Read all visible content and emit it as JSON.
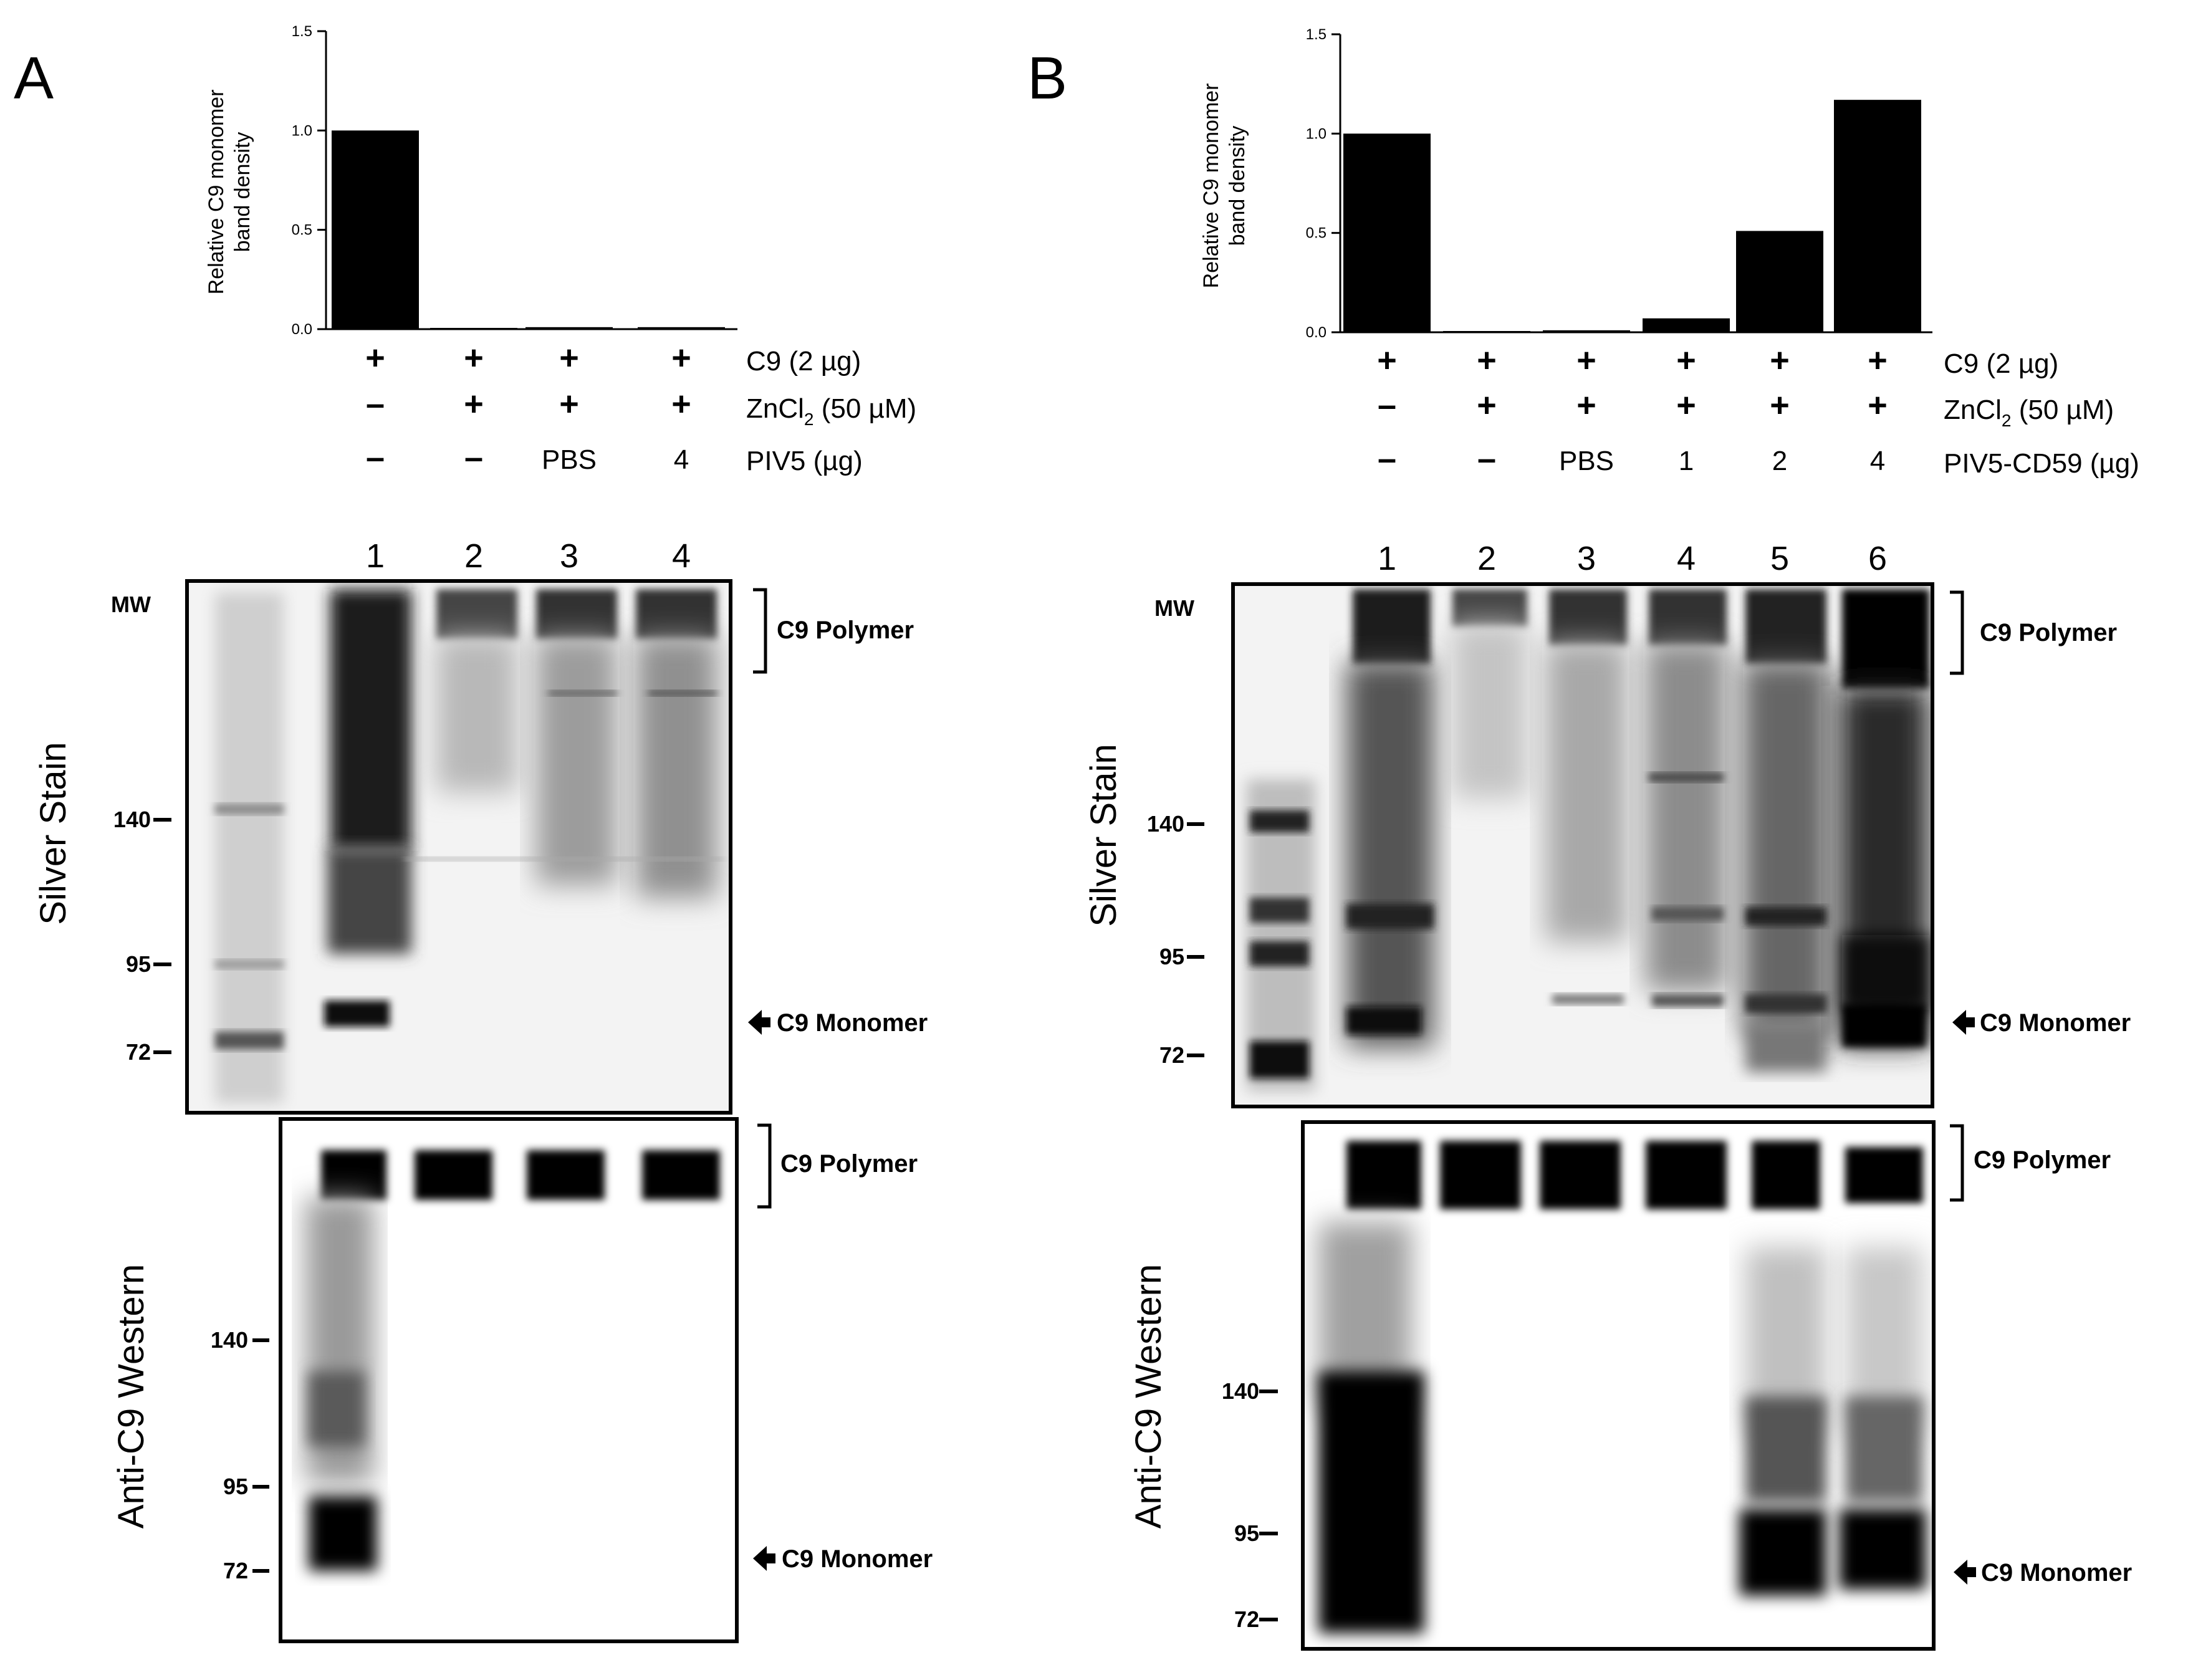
{
  "panels": [
    {
      "letter": "A",
      "chart_data": {
        "type": "bar",
        "ylabel": "Relative C9 monomer band density",
        "ylabel_lines": [
          "Relative C9 monomer",
          "band density"
        ],
        "ylim": [
          0,
          1.5
        ],
        "yticks": [
          "0.0",
          "0.5",
          "1.0",
          "1.5"
        ],
        "categories": [
          "1",
          "2",
          "3",
          "4"
        ],
        "values": [
          1.0,
          0.005,
          0.01,
          0.01
        ]
      },
      "conditions": [
        {
          "label": "C9 (2 µg)",
          "values": [
            "+",
            "+",
            "+",
            "+"
          ]
        },
        {
          "label": "ZnCl2 (50 µM)",
          "label_main": "ZnCl",
          "label_sub": "2",
          "label_rest": " (50 µM)",
          "values": [
            "-",
            "+",
            "+",
            "+"
          ]
        },
        {
          "label": "PIV5 (µg)",
          "values": [
            "-",
            "-",
            "PBS",
            "4"
          ]
        }
      ],
      "lanes": [
        "1",
        "2",
        "3",
        "4"
      ],
      "silver": {
        "side_label": "Silver Stain",
        "mw_header": "MW",
        "mw_markers": [
          "140",
          "95",
          "72"
        ],
        "annotations": {
          "polymer": "C9 Polymer",
          "monomer": "C9 Monomer"
        }
      },
      "western": {
        "side_label": "Anti-C9 Western",
        "mw_markers": [
          "140",
          "95",
          "72"
        ],
        "annotations": {
          "polymer": "C9 Polymer",
          "monomer": "C9 Monomer"
        }
      }
    },
    {
      "letter": "B",
      "chart_data": {
        "type": "bar",
        "ylabel": "Relative C9 monomer band density",
        "ylabel_lines": [
          "Relative C9 monomer",
          "band density"
        ],
        "ylim": [
          0,
          1.5
        ],
        "yticks": [
          "0.0",
          "0.5",
          "1.0",
          "1.5"
        ],
        "categories": [
          "1",
          "2",
          "3",
          "4",
          "5",
          "6"
        ],
        "values": [
          1.0,
          0.0,
          0.01,
          0.07,
          0.51,
          1.17
        ]
      },
      "conditions": [
        {
          "label": "C9 (2 µg)",
          "values": [
            "+",
            "+",
            "+",
            "+",
            "+",
            "+"
          ]
        },
        {
          "label": "ZnCl2 (50 µM)",
          "label_main": "ZnCl",
          "label_sub": "2",
          "label_rest": " (50 µM)",
          "values": [
            "-",
            "+",
            "+",
            "+",
            "+",
            "+"
          ]
        },
        {
          "label": "PIV5-CD59 (µg)",
          "values": [
            "-",
            "-",
            "PBS",
            "1",
            "2",
            "4"
          ]
        }
      ],
      "lanes": [
        "1",
        "2",
        "3",
        "4",
        "5",
        "6"
      ],
      "silver": {
        "side_label": "Silver Stain",
        "mw_header": "MW",
        "mw_markers": [
          "140",
          "95",
          "72"
        ],
        "annotations": {
          "polymer": "C9 Polymer",
          "monomer": "C9 Monomer"
        }
      },
      "western": {
        "side_label": "Anti-C9 Western",
        "mw_markers": [
          "140",
          "95",
          "72"
        ],
        "annotations": {
          "polymer": "C9 Polymer",
          "monomer": "C9 Monomer"
        }
      }
    }
  ]
}
